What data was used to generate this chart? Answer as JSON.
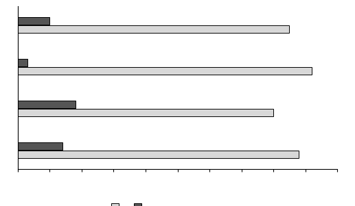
{
  "groups": 4,
  "light_values": [
    88,
    80,
    92,
    85
  ],
  "dark_values": [
    14,
    18,
    3,
    10
  ],
  "light_color": "#d8d8d8",
  "dark_color": "#555555",
  "bar_edgecolor": "#000000",
  "bar_height": 0.18,
  "xlim": [
    0,
    100
  ],
  "background_color": "#ffffff",
  "legend_light_label": "",
  "legend_dark_label": ""
}
